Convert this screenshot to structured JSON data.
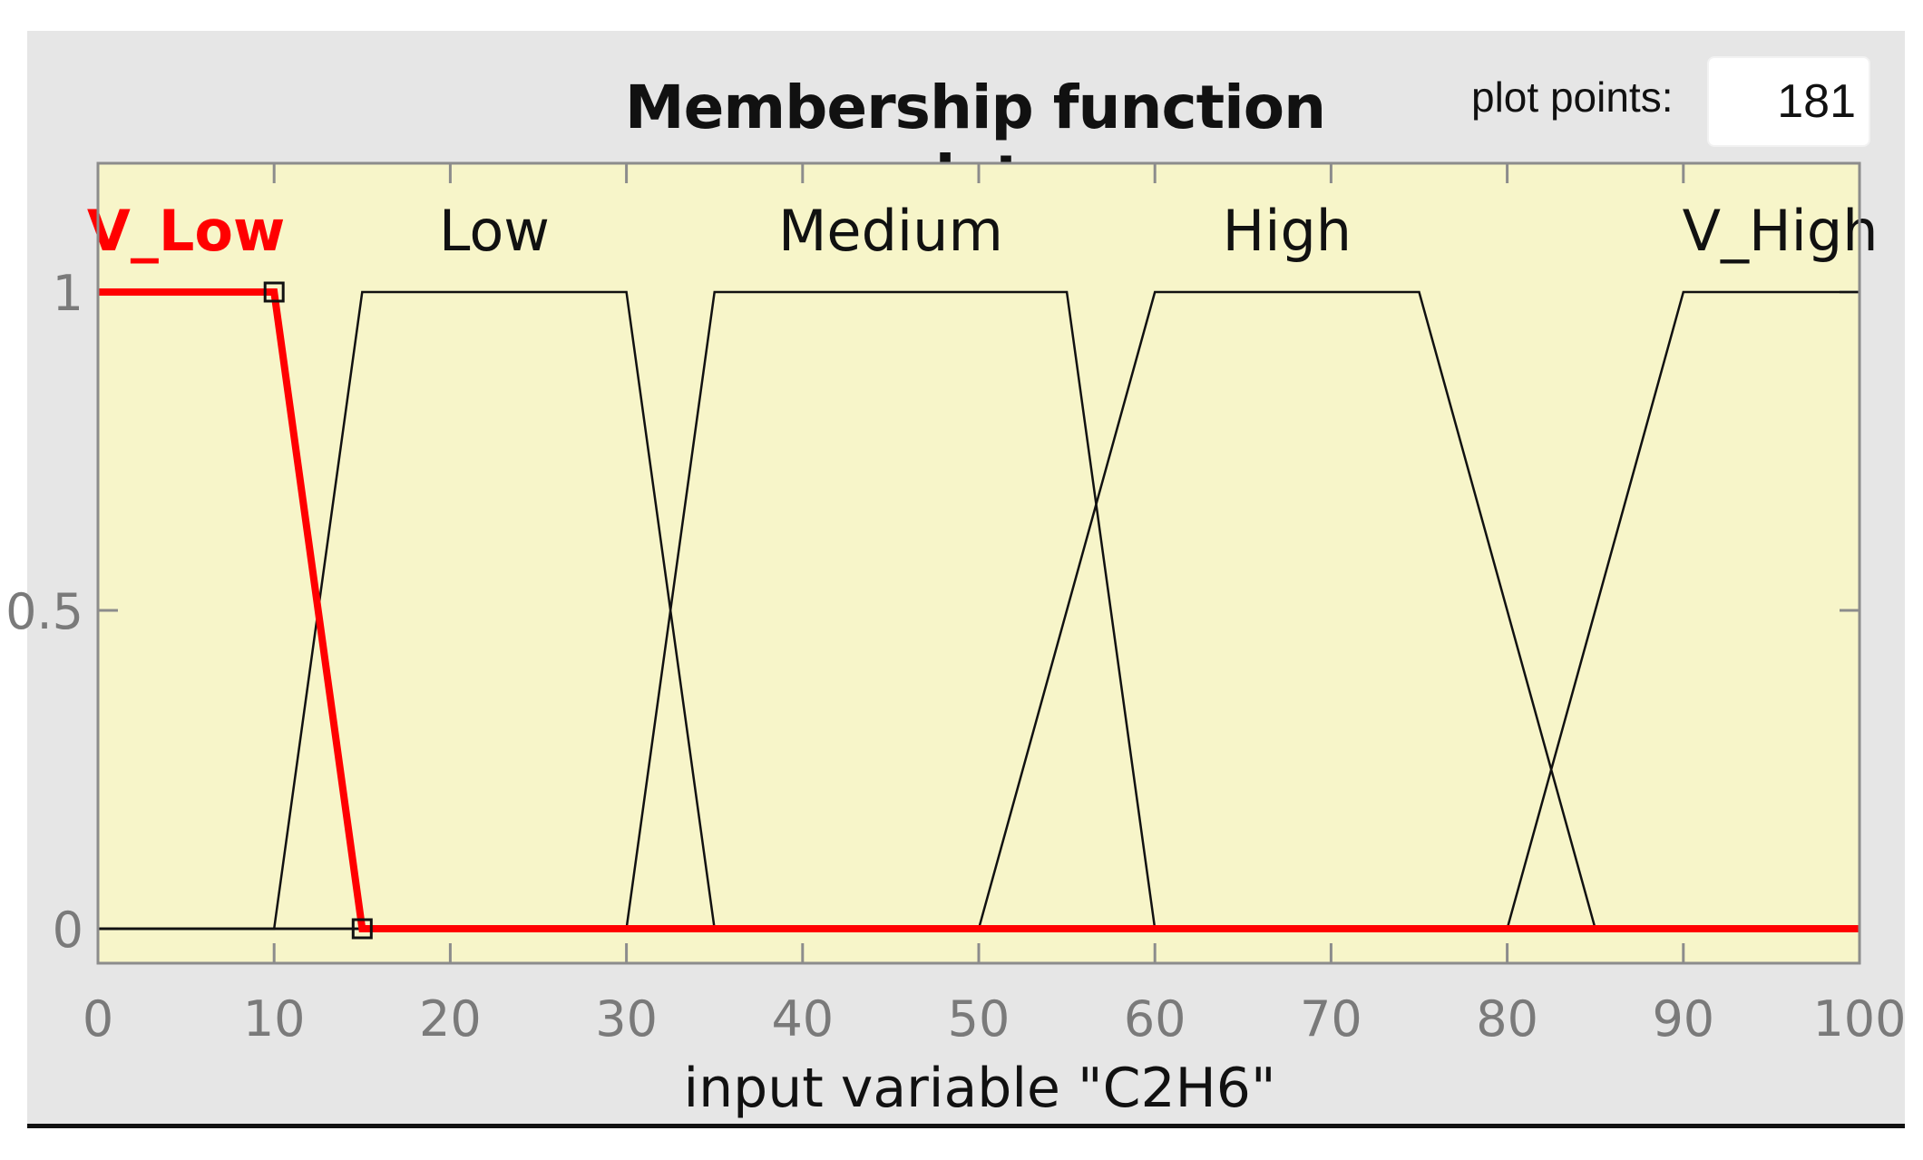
{
  "title": "Membership function plots",
  "plot_points": {
    "label": "plot points:",
    "value": "181"
  },
  "chart_data": {
    "type": "line",
    "title": "Membership function plots",
    "xlabel": "input variable \"C2H6\"",
    "ylabel": "",
    "xlim": [
      0,
      100
    ],
    "ylim": [
      0,
      1.2
    ],
    "xticks": [
      "0",
      "10",
      "20",
      "30",
      "40",
      "50",
      "60",
      "70",
      "80",
      "90",
      "100"
    ],
    "yticks": [
      "0",
      "0.5",
      "1"
    ],
    "series": [
      {
        "name": "V_Low",
        "selected": true,
        "x": [
          0,
          10,
          15,
          100
        ],
        "y": [
          1,
          1,
          0,
          0
        ]
      },
      {
        "name": "Low",
        "x": [
          0,
          10,
          15,
          30,
          35,
          100
        ],
        "y": [
          0,
          0,
          1,
          1,
          0,
          0
        ]
      },
      {
        "name": "Medium",
        "x": [
          0,
          30,
          35,
          55,
          60,
          100
        ],
        "y": [
          0,
          0,
          1,
          1,
          0,
          0
        ]
      },
      {
        "name": "High",
        "x": [
          0,
          50,
          60,
          75,
          85,
          100
        ],
        "y": [
          0,
          0,
          1,
          1,
          0,
          0
        ]
      },
      {
        "name": "V_High",
        "x": [
          0,
          80,
          90,
          100
        ],
        "y": [
          0,
          0,
          1,
          1
        ]
      }
    ],
    "label_x": [
      5,
      22.5,
      45,
      67.5,
      95.5
    ],
    "selected_points": [
      {
        "x": 10,
        "y": 1
      },
      {
        "x": 15,
        "y": 0
      }
    ],
    "colors": {
      "plot_bg": "#f7f5c9",
      "line": "#111111",
      "selected": "#ff0000",
      "axis": "#8c8c8c",
      "tick_text": "#7a7a7a"
    },
    "grid": false
  }
}
